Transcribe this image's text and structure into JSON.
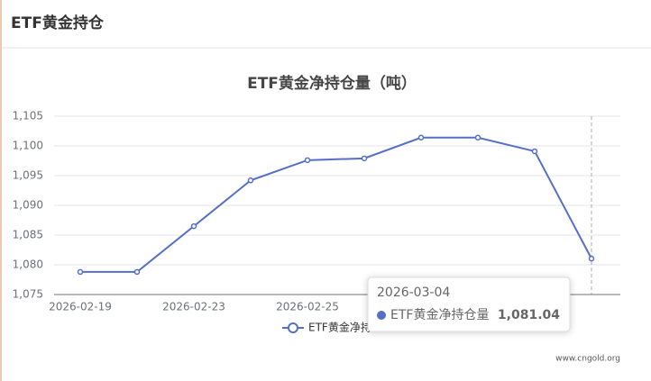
{
  "header": {
    "title": "ETF黄金持仓"
  },
  "chart_data": {
    "type": "line",
    "title": "ETF黄金净持仓量（吨）",
    "categories": [
      "2026-02-19",
      null,
      "2026-02-23",
      null,
      "2026-02-25",
      null,
      null,
      null,
      null,
      null
    ],
    "series": [
      {
        "name": "ETF黄金净持仓量",
        "color": "#5470c6",
        "values": [
          1078.8,
          1078.8,
          1086.5,
          1094.2,
          1097.6,
          1097.9,
          1101.4,
          1101.4,
          1099.1,
          1081.04
        ]
      }
    ],
    "ylim": [
      1075,
      1105
    ],
    "yticks": [
      {
        "value": 1075,
        "label": "1,075"
      },
      {
        "value": 1080,
        "label": "1,080"
      },
      {
        "value": 1085,
        "label": "1,085"
      },
      {
        "value": 1090,
        "label": "1,090"
      },
      {
        "value": 1095,
        "label": "1,095"
      },
      {
        "value": 1100,
        "label": "1,100"
      },
      {
        "value": 1105,
        "label": "1,105"
      }
    ],
    "grid": true,
    "tooltip": {
      "date": "2026-03-04",
      "series": "ETF黄金净持仓量",
      "value": 1081.04,
      "value_label": "1,081.04"
    },
    "source": "www.cngold.org"
  }
}
